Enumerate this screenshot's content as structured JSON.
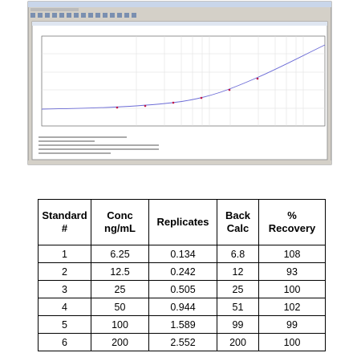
{
  "table": {
    "header": [
      [
        "Standard",
        "#"
      ],
      [
        "Conc",
        "ng/mL"
      ],
      [
        "Replicates"
      ],
      [
        "Back",
        "Calc"
      ],
      [
        "%",
        "Recovery"
      ]
    ],
    "rows": [
      [
        "1",
        "6.25",
        "0.134",
        "6.8",
        "108"
      ],
      [
        "2",
        "12.5",
        "0.242",
        "12",
        "93"
      ],
      [
        "3",
        "25",
        "0.505",
        "25",
        "100"
      ],
      [
        "4",
        "50",
        "0.944",
        "51",
        "102"
      ],
      [
        "5",
        "100",
        "1.589",
        "99",
        "99"
      ],
      [
        "6",
        "200",
        "2.552",
        "200",
        "100"
      ]
    ]
  }
}
